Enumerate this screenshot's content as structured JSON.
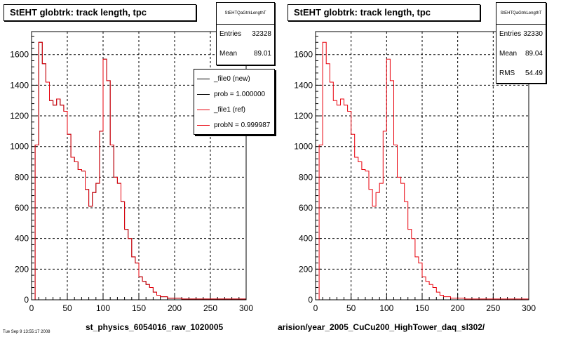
{
  "colors": {
    "new": "#000000",
    "ref": "#e8000b",
    "grid": "#000000"
  },
  "left_panel": {
    "title": "StEHT globtrk: track length, tpc",
    "stats": {
      "name": "StEHTQaGtrkLengthT",
      "entries_label": "Entries",
      "entries": "32328",
      "mean_label": "Mean",
      "mean": "89.01"
    },
    "legend": [
      {
        "label": "_file0 (new)",
        "color": "#000000"
      },
      {
        "label": "prob = 1.000000",
        "color": "#000000"
      },
      {
        "label": "_file1 (ref)",
        "color": "#e8000b"
      },
      {
        "label": "probN = 0.999987",
        "color": "#e8000b"
      }
    ],
    "x_name": "st_physics_6054016_raw_1020005",
    "footnote": "Tue Sep  9 13:55:17 2008"
  },
  "right_panel": {
    "title": "StEHT globtrk: track length, tpc",
    "stats": {
      "name": "StEHTQaGtrkLengthT",
      "entries_label": "Entries",
      "entries": "32330",
      "mean_label": "Mean",
      "mean": "89.04",
      "rms_label": "RMS",
      "rms": "54.49"
    },
    "x_name": "arision/year_2005_CuCu200_HighTower_daq_sl302/"
  },
  "chart_data": [
    {
      "type": "histogram",
      "title": "StEHT globtrk: track length, tpc",
      "xlabel": "st_physics_6054016_raw_1020005",
      "xlim": [
        0,
        300
      ],
      "ylim": [
        0,
        1750
      ],
      "xticks": [
        0,
        50,
        100,
        150,
        200,
        250,
        300
      ],
      "yticks": [
        0,
        200,
        400,
        600,
        800,
        1000,
        1200,
        1400,
        1600
      ],
      "grid": true,
      "bin_edges_start": 0,
      "bin_width": 5,
      "series": [
        {
          "name": "_file0 (new)",
          "color": "#000000",
          "values": [
            0,
            1010,
            1680,
            1540,
            1420,
            1300,
            1270,
            1310,
            1270,
            1230,
            1080,
            930,
            900,
            850,
            840,
            720,
            610,
            700,
            760,
            1100,
            1570,
            1430,
            1010,
            800,
            760,
            640,
            460,
            400,
            280,
            240,
            150,
            120,
            100,
            80,
            50,
            30,
            20,
            20,
            10,
            10,
            10,
            10,
            5,
            5,
            5,
            5,
            5,
            5,
            5,
            5,
            5,
            5,
            5,
            5,
            5,
            5,
            5,
            5,
            5,
            5
          ]
        },
        {
          "name": "_file1 (ref)",
          "color": "#e8000b",
          "values": [
            0,
            1010,
            1680,
            1540,
            1420,
            1300,
            1270,
            1310,
            1270,
            1230,
            1080,
            930,
            900,
            850,
            840,
            720,
            610,
            700,
            760,
            1100,
            1570,
            1430,
            1010,
            800,
            760,
            640,
            460,
            400,
            280,
            240,
            150,
            120,
            100,
            80,
            50,
            30,
            20,
            20,
            10,
            10,
            10,
            10,
            5,
            5,
            5,
            5,
            5,
            5,
            5,
            5,
            5,
            5,
            5,
            5,
            5,
            5,
            5,
            5,
            5,
            5
          ]
        }
      ]
    },
    {
      "type": "histogram",
      "title": "StEHT globtrk: track length, tpc",
      "xlabel": "arision/year_2005_CuCu200_HighTower_daq_sl302/",
      "xlim": [
        0,
        300
      ],
      "ylim": [
        0,
        1750
      ],
      "xticks": [
        0,
        50,
        100,
        150,
        200,
        250,
        300
      ],
      "yticks": [
        0,
        200,
        400,
        600,
        800,
        1000,
        1200,
        1400,
        1600
      ],
      "grid": true,
      "bin_edges_start": 0,
      "bin_width": 5,
      "series": [
        {
          "color": "#e8000b",
          "values": [
            0,
            1010,
            1680,
            1540,
            1420,
            1300,
            1270,
            1310,
            1270,
            1230,
            1080,
            930,
            900,
            850,
            840,
            720,
            610,
            700,
            760,
            1100,
            1570,
            1430,
            1010,
            800,
            760,
            640,
            460,
            400,
            280,
            240,
            150,
            120,
            100,
            80,
            50,
            30,
            20,
            20,
            10,
            10,
            10,
            10,
            5,
            5,
            5,
            5,
            5,
            5,
            5,
            5,
            5,
            5,
            5,
            5,
            5,
            5,
            5,
            5,
            5,
            5
          ]
        }
      ]
    }
  ]
}
